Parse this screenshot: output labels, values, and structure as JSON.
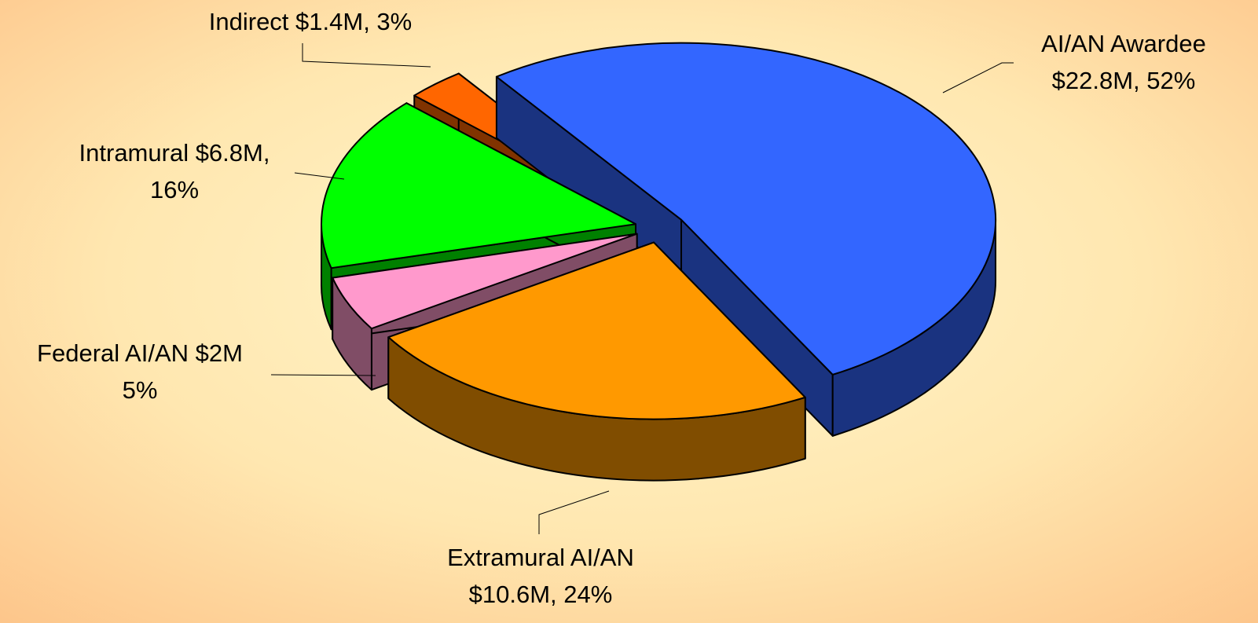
{
  "chart_data": {
    "type": "pie",
    "labels": [
      [
        "AI/AN Awardee",
        "$22.8M, 52%"
      ],
      [
        "Extramural AI/AN",
        "$10.6M, 24%"
      ],
      [
        "Federal AI/AN $2M",
        "5%"
      ],
      [
        "Intramural $6.8M,",
        "16%"
      ],
      [
        "Indirect $1.4M, 3%"
      ]
    ],
    "values": [
      52,
      24,
      5,
      16,
      3
    ],
    "colors": [
      "#3366ff",
      "#ff9900",
      "#ff99cc",
      "#00ff00",
      "#ff6600"
    ],
    "three_d": true,
    "exploded": true
  }
}
